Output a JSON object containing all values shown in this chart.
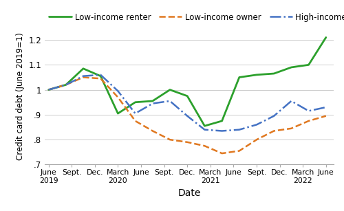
{
  "title": "",
  "xlabel": "Date",
  "ylabel": "Credit card debt (June 2019=1)",
  "ylim": [
    0.7,
    1.25
  ],
  "yticks": [
    0.7,
    0.8,
    0.9,
    1.0,
    1.1,
    1.2
  ],
  "ytick_labels": [
    ".7",
    ".8",
    ".9",
    "1",
    "1.1",
    "1.2"
  ],
  "x_labels": [
    "June\n2019",
    "Sept.",
    "Dec.",
    "March\n2020",
    "June",
    "Sept.",
    "Dec.",
    "March\n2021",
    "June",
    "Sept.",
    "Dec.",
    "March\n2022",
    "June"
  ],
  "background_color": "#ffffff",
  "grid_color": "#cccccc",
  "low_income_renter": {
    "label": "Low-income renter",
    "color": "#2ca02c",
    "linestyle": "solid",
    "linewidth": 2.0,
    "values": [
      1.0,
      1.02,
      1.085,
      1.055,
      0.905,
      0.95,
      0.955,
      1.0,
      0.975,
      0.855,
      0.875,
      1.05,
      1.06,
      1.065,
      1.09,
      1.1,
      1.21
    ]
  },
  "low_income_owner": {
    "label": "Low-income owner",
    "color": "#e07820",
    "linestyle": "dashed",
    "linewidth": 1.8,
    "values": [
      1.0,
      1.02,
      1.05,
      1.045,
      0.97,
      0.875,
      0.835,
      0.8,
      0.79,
      0.775,
      0.745,
      0.755,
      0.8,
      0.835,
      0.845,
      0.875,
      0.895
    ]
  },
  "high_income_owner": {
    "label": "High-income owner",
    "color": "#4472c4",
    "linestyle": "dashdot",
    "linewidth": 1.8,
    "values": [
      1.0,
      1.02,
      1.055,
      1.06,
      0.995,
      0.905,
      0.945,
      0.955,
      0.895,
      0.84,
      0.835,
      0.84,
      0.86,
      0.895,
      0.955,
      0.915,
      0.93
    ]
  },
  "n_points": 17,
  "figsize": [
    5.0,
    3.07
  ],
  "dpi": 100
}
